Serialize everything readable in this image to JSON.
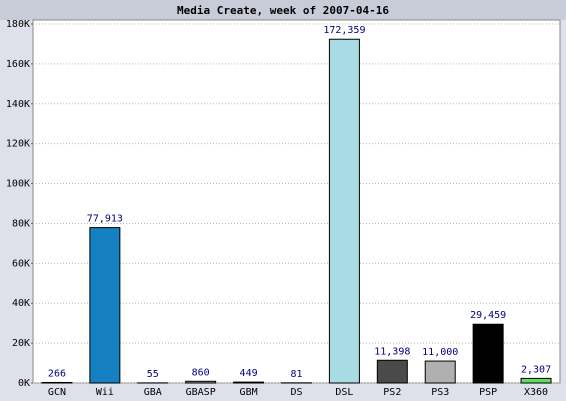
{
  "chart_data": {
    "type": "bar",
    "title": "Media Create, week of 2007-04-16",
    "categories": [
      "GCN",
      "Wii",
      "GBA",
      "GBASP",
      "GBM",
      "DS",
      "DSL",
      "PS2",
      "PS3",
      "PSP",
      "X360"
    ],
    "values": [
      266,
      77913,
      55,
      860,
      449,
      81,
      172359,
      11398,
      11000,
      29459,
      2307
    ],
    "value_labels": [
      "266",
      "77,913",
      "55",
      "860",
      "449",
      "81",
      "172,359",
      "11,398",
      "11,000",
      "29,459",
      "2,307"
    ],
    "colors": [
      "#6a3d9a",
      "#1580c2",
      "#808080",
      "#9a9a9a",
      "#333333",
      "#cccccc",
      "#a8dbe4",
      "#4a4a4a",
      "#b0b0b0",
      "#000000",
      "#5ee05e"
    ],
    "ylim": [
      0,
      180000
    ],
    "yticks": [
      {
        "value": 0,
        "label": "0K"
      },
      {
        "value": 20000,
        "label": "20K"
      },
      {
        "value": 40000,
        "label": "40K"
      },
      {
        "value": 60000,
        "label": "60K"
      },
      {
        "value": 80000,
        "label": "80K"
      },
      {
        "value": 100000,
        "label": "100K"
      },
      {
        "value": 120000,
        "label": "120K"
      },
      {
        "value": 140000,
        "label": "140K"
      },
      {
        "value": 160000,
        "label": "160K"
      },
      {
        "value": 180000,
        "label": "180K"
      }
    ],
    "grid": true
  }
}
